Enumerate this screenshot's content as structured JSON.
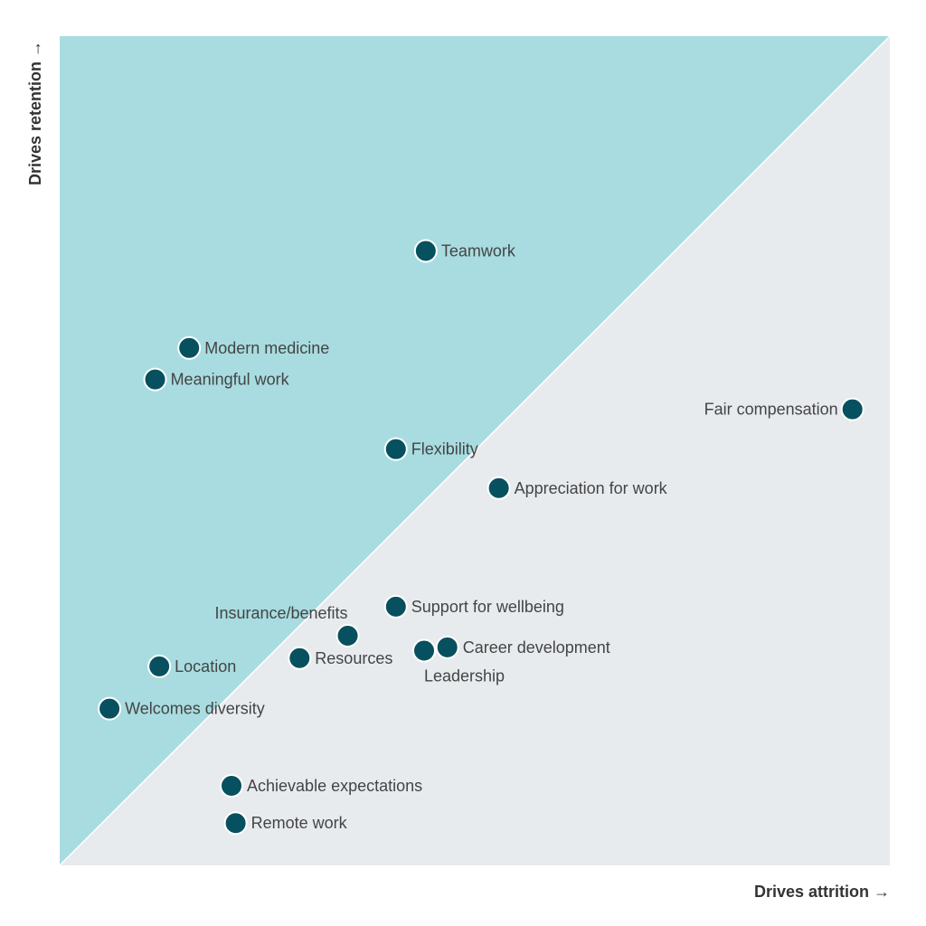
{
  "chart_data": {
    "type": "scatter",
    "title": "",
    "xlabel": "Drives attrition →",
    "ylabel": "Drives retention →",
    "xlim": [
      0,
      100
    ],
    "ylim": [
      0,
      100
    ],
    "grid": false,
    "regions": [
      {
        "name": "retention-region",
        "color": "#a8dce0"
      },
      {
        "name": "attrition-region",
        "color": "#e8ebee"
      }
    ],
    "marker_color": "#07505f",
    "points": [
      {
        "label": "Teamwork",
        "x": 44.1,
        "y": 74.1
      },
      {
        "label": "Modern medicine",
        "x": 15.6,
        "y": 62.4
      },
      {
        "label": "Meaningful work",
        "x": 11.5,
        "y": 58.6
      },
      {
        "label": "Fair compensation",
        "x": 95.5,
        "y": 55.0
      },
      {
        "label": "Flexibility",
        "x": 40.5,
        "y": 50.2
      },
      {
        "label": "Appreciation for work",
        "x": 52.9,
        "y": 45.5
      },
      {
        "label": "Support for wellbeing",
        "x": 40.5,
        "y": 31.2
      },
      {
        "label": "Insurance/benefits",
        "x": 34.7,
        "y": 27.7
      },
      {
        "label": "Career development",
        "x": 46.7,
        "y": 26.3
      },
      {
        "label": "Leadership",
        "x": 43.9,
        "y": 25.9
      },
      {
        "label": "Resources",
        "x": 28.9,
        "y": 25.0
      },
      {
        "label": "Location",
        "x": 12.0,
        "y": 24.0
      },
      {
        "label": "Welcomes diversity",
        "x": 6.0,
        "y": 18.9
      },
      {
        "label": "Achievable expectations",
        "x": 20.7,
        "y": 9.6
      },
      {
        "label": "Remote work",
        "x": 21.2,
        "y": 5.1
      }
    ]
  }
}
